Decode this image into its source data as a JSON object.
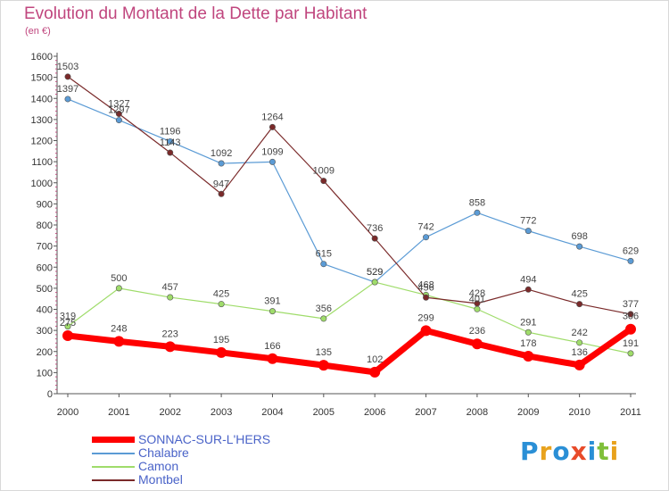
{
  "title": "Evolution du Montant de la Dette par Habitant",
  "subtitle": "(en €)",
  "logo_letters": [
    "P",
    "r",
    "o",
    "x",
    "i",
    "t",
    "i"
  ],
  "logo_colors": [
    "#2a8fd6",
    "#e8a21d",
    "#2a8fd6",
    "#e84b2a",
    "#2a8fd6",
    "#7fbf3a",
    "#e8a21d"
  ],
  "chart_data": {
    "type": "line",
    "x": [
      "2000",
      "2001",
      "2002",
      "2003",
      "2004",
      "2005",
      "2006",
      "2007",
      "2008",
      "2009",
      "2010",
      "2011"
    ],
    "ylim": [
      0,
      1600
    ],
    "yticks": [
      0,
      100,
      200,
      300,
      400,
      500,
      600,
      700,
      800,
      900,
      1000,
      1100,
      1200,
      1300,
      1400,
      1500,
      1600
    ],
    "grid": false,
    "legend_position": "bottom-left",
    "series": [
      {
        "name": "Chalabre",
        "color": "#5b9bd5",
        "values": [
          1397,
          1297,
          1196,
          1092,
          1099,
          615,
          529,
          742,
          858,
          772,
          698,
          629
        ]
      },
      {
        "name": "Camon",
        "color": "#9fdc6a",
        "values": [
          319,
          500,
          457,
          425,
          391,
          356,
          529,
          468,
          401,
          291,
          242,
          191
        ]
      },
      {
        "name": "Montbel",
        "color": "#7a2a2a",
        "values": [
          1503,
          1327,
          1143,
          947,
          1264,
          1009,
          736,
          456,
          428,
          494,
          425,
          377
        ]
      },
      {
        "name": "SONNAC-SUR-L'HERS",
        "color": "#ff0000",
        "values": [
          275,
          248,
          223,
          195,
          166,
          135,
          102,
          299,
          236,
          178,
          136,
          306
        ]
      }
    ],
    "legend_order": [
      "SONNAC-SUR-L'HERS",
      "Chalabre",
      "Camon",
      "Montbel"
    ]
  }
}
